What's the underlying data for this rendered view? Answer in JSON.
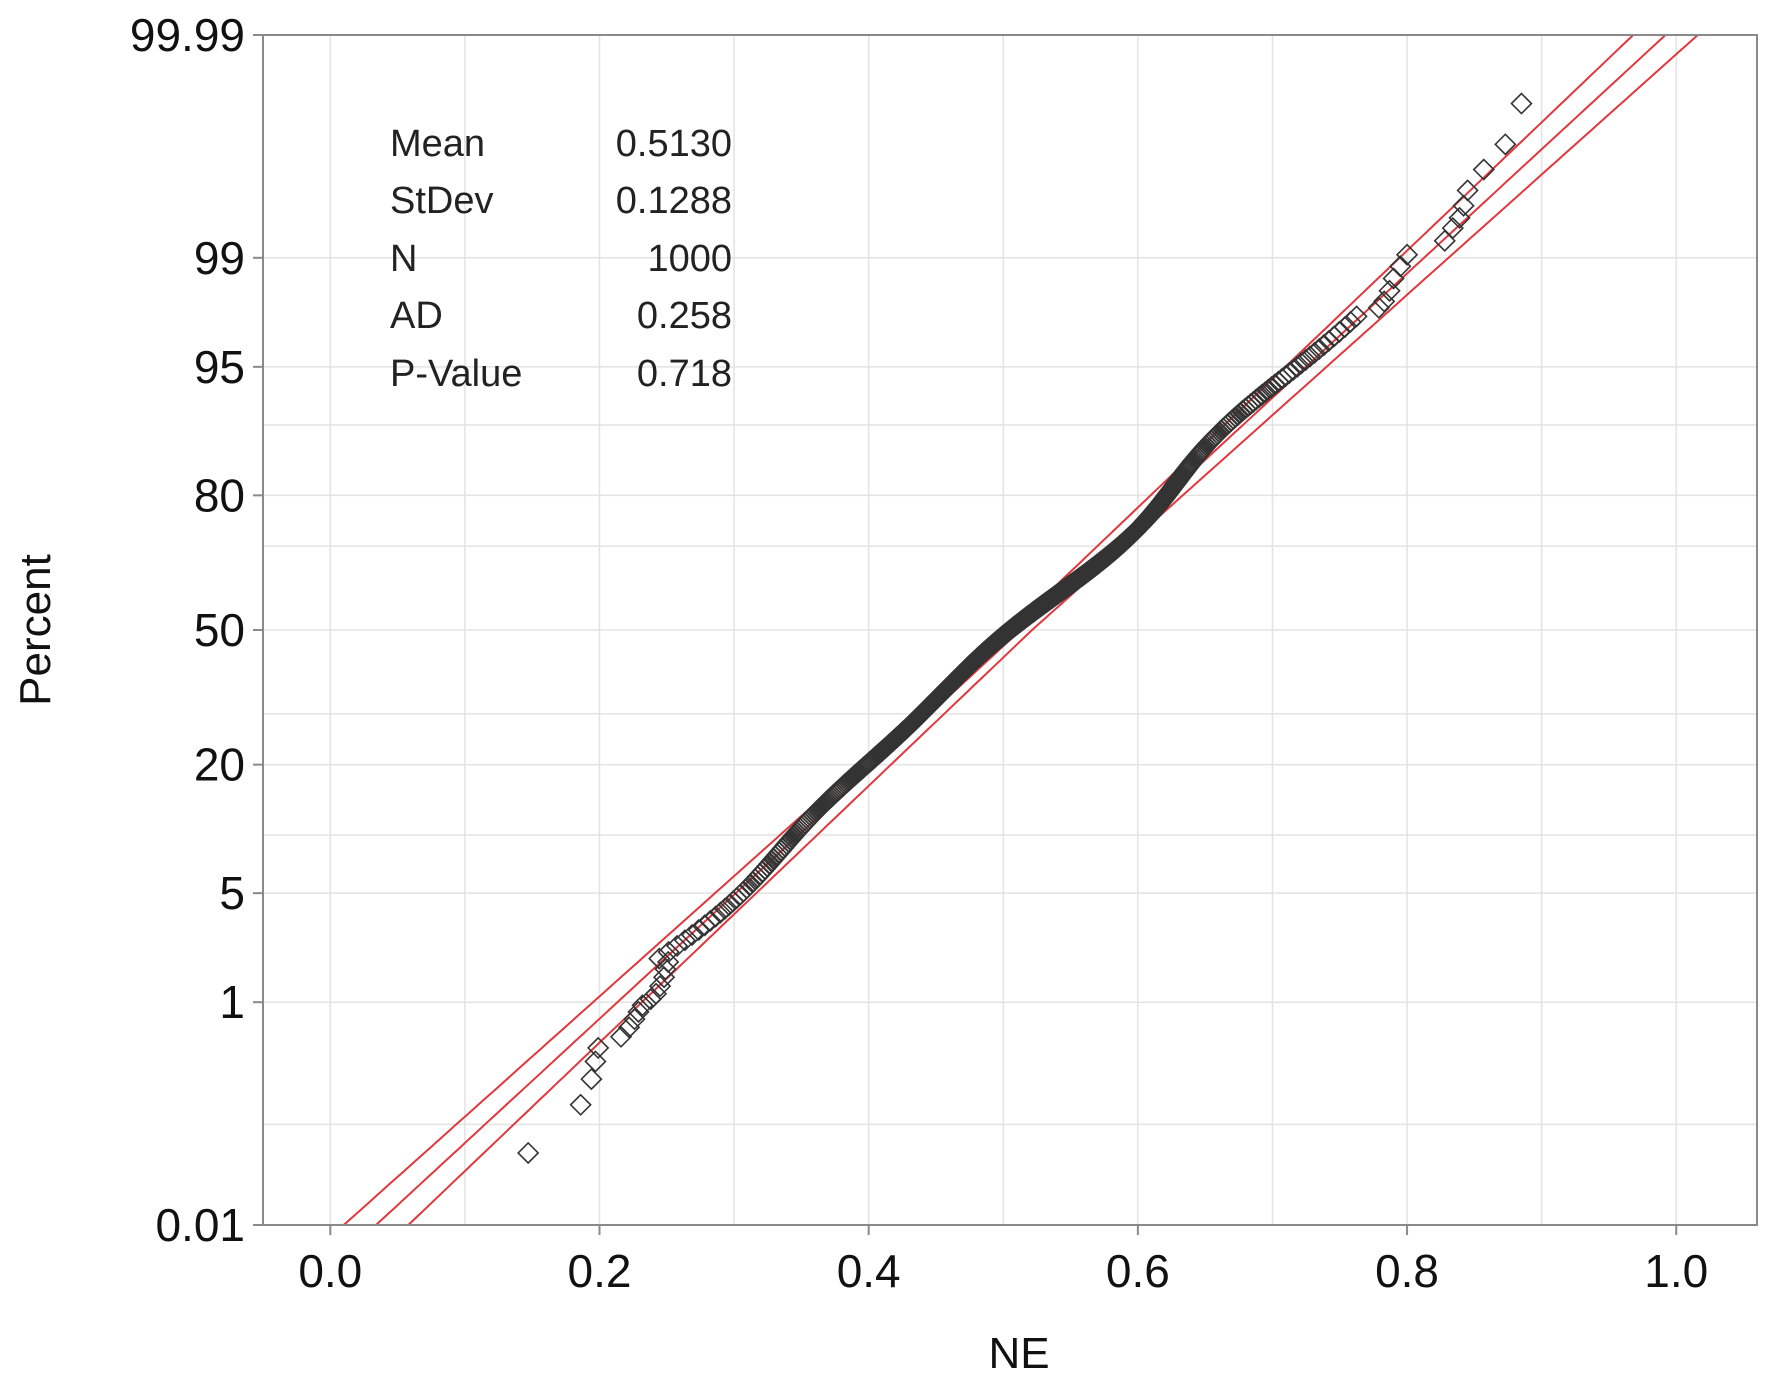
{
  "chart_data": {
    "type": "scatter",
    "subtype": "normal-probability-plot",
    "title": "",
    "xlabel": "NE",
    "ylabel": "Percent",
    "xlim": [
      -0.05,
      1.06
    ],
    "ylim": [
      0.01,
      99.99
    ],
    "y_scale": "normal-probability",
    "x_ticks": [
      0.0,
      0.2,
      0.4,
      0.6,
      0.8,
      1.0
    ],
    "x_tick_labels": [
      "0.0",
      "0.2",
      "0.4",
      "0.6",
      "0.8",
      "1.0"
    ],
    "x_minor_gridlines": [
      0.1,
      0.3,
      0.5,
      0.7,
      0.9
    ],
    "y_ticks": [
      0.01,
      1,
      5,
      20,
      50,
      80,
      95,
      99,
      99.99
    ],
    "y_tick_labels": [
      "0.01",
      "1",
      "5",
      "20",
      "50",
      "80",
      "95",
      "99",
      "99.99"
    ],
    "y_minor_gridlines": [
      0.1,
      10,
      30,
      70,
      90
    ],
    "grid": true,
    "legend": "none",
    "colors": {
      "fit_line": "#e0383d",
      "markers": "#333333",
      "grid": "#e3e3e3",
      "frame": "#8a8a8a"
    },
    "fit": {
      "mean": 0.513,
      "stdev": 0.1288,
      "ci_half_width_at_ends": 0.024
    },
    "stats": {
      "rows": [
        {
          "label": "Mean",
          "value": "0.5130"
        },
        {
          "label": "StDev",
          "value": "0.1288"
        },
        {
          "label": "N",
          "value": "1000"
        },
        {
          "label": "AD",
          "value": "0.258"
        },
        {
          "label": "P-Value",
          "value": "0.718"
        }
      ]
    },
    "outlier_points": [
      {
        "x": 0.147,
        "p": 0.054
      },
      {
        "x": 0.186,
        "p": 0.15
      },
      {
        "x": 0.194,
        "p": 0.25
      },
      {
        "x": 0.197,
        "p": 0.35
      },
      {
        "x": 0.199,
        "p": 0.45
      },
      {
        "x": 0.216,
        "p": 0.55
      },
      {
        "x": 0.222,
        "p": 0.65
      },
      {
        "x": 0.226,
        "p": 0.75
      },
      {
        "x": 0.229,
        "p": 0.85
      },
      {
        "x": 0.232,
        "p": 0.95
      },
      {
        "x": 0.238,
        "p": 1.05
      },
      {
        "x": 0.242,
        "p": 1.15
      },
      {
        "x": 0.245,
        "p": 1.3
      },
      {
        "x": 0.248,
        "p": 1.5
      },
      {
        "x": 0.249,
        "p": 1.7
      },
      {
        "x": 0.251,
        "p": 1.9
      },
      {
        "x": 0.779,
        "p": 97.8
      },
      {
        "x": 0.783,
        "p": 98.0
      },
      {
        "x": 0.787,
        "p": 98.3
      },
      {
        "x": 0.79,
        "p": 98.6
      },
      {
        "x": 0.795,
        "p": 98.85
      },
      {
        "x": 0.8,
        "p": 99.05
      },
      {
        "x": 0.828,
        "p": 99.25
      },
      {
        "x": 0.834,
        "p": 99.4
      },
      {
        "x": 0.839,
        "p": 99.5
      },
      {
        "x": 0.842,
        "p": 99.6
      },
      {
        "x": 0.845,
        "p": 99.7
      },
      {
        "x": 0.857,
        "p": 99.8
      },
      {
        "x": 0.873,
        "p": 99.88
      },
      {
        "x": 0.885,
        "p": 99.95
      }
    ]
  }
}
